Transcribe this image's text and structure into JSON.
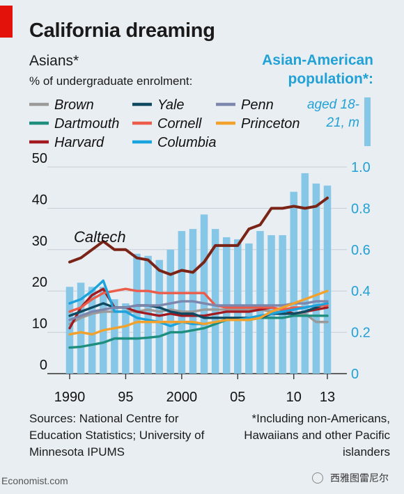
{
  "header": {
    "title": "California dreaming",
    "subtitle": "Asians*",
    "subtitle2": "% of undergraduate enrolment:",
    "right_title": "Asian-American population*:",
    "right_sub": "aged 18-21, m"
  },
  "footer": {
    "sources": "Sources: National Centre for Education Statistics; University of Minnesota IPUMS",
    "footnote": "*Including non-Americans, Hawaiians and other Pacific islanders",
    "brand": "Economist.com",
    "watermark": "西雅图雷尼尔"
  },
  "chart_data": {
    "type": "line",
    "x_range": [
      1990,
      2013
    ],
    "x_tick_labels": [
      "1990",
      "95",
      "2000",
      "05",
      "10",
      "13"
    ],
    "x_tick_values": [
      1990,
      1995,
      2000,
      2005,
      2010,
      2013
    ],
    "ylim_left": [
      0,
      50
    ],
    "y_ticks_left": [
      0,
      10,
      20,
      30,
      40,
      50
    ],
    "ylim_right": [
      0,
      1.0
    ],
    "y_ticks_right": [
      "0",
      "0.2",
      "0.4",
      "0.6",
      "0.8",
      "1.0"
    ],
    "y_ticks_right_values": [
      0,
      0.2,
      0.4,
      0.6,
      0.8,
      1.0
    ],
    "grid": true,
    "legend_position": "top",
    "bars": {
      "axis": "right",
      "color": "#86c6e6",
      "x": [
        1990,
        1991,
        1992,
        1993,
        1994,
        1995,
        1996,
        1997,
        1998,
        1999,
        2000,
        2001,
        2002,
        2003,
        2004,
        2005,
        2006,
        2007,
        2008,
        2009,
        2010,
        2011,
        2012,
        2013
      ],
      "values": [
        0.42,
        0.44,
        0.42,
        0.42,
        0.36,
        0.34,
        0.58,
        0.57,
        0.55,
        0.6,
        0.69,
        0.7,
        0.77,
        0.7,
        0.66,
        0.65,
        0.63,
        0.69,
        0.67,
        0.67,
        0.88,
        0.97,
        0.92,
        0.91
      ]
    },
    "series": [
      {
        "name": "Brown",
        "color": "#9a9a9a",
        "values": [
          12,
          13.5,
          14.5,
          15,
          15,
          15,
          15,
          15.5,
          15,
          15.5,
          15,
          15,
          15.5,
          15.5,
          15.5,
          15.5,
          15.5,
          15.5,
          15,
          15,
          14.5,
          14.5,
          12.5,
          12.5
        ]
      },
      {
        "name": "Dartmouth",
        "color": "#1e8f7e",
        "values": [
          6.3,
          6.5,
          7,
          7.5,
          8.5,
          8.5,
          8.5,
          8.7,
          9,
          10,
          10,
          10.5,
          11,
          12,
          13,
          13,
          13,
          13.5,
          13.5,
          13.5,
          14,
          14,
          14,
          14
        ]
      },
      {
        "name": "Harvard",
        "color": "#a11a1f",
        "values": [
          11,
          16,
          19,
          20.5,
          16,
          16,
          15,
          14.5,
          14,
          14.5,
          14,
          14,
          14,
          14.5,
          15,
          15,
          15,
          15.5,
          16,
          15.5,
          14.5,
          15,
          15.5,
          16
        ]
      },
      {
        "name": "Yale",
        "color": "#0f4a60",
        "values": [
          14,
          15,
          16,
          17,
          16,
          16,
          16.5,
          16.5,
          16,
          15,
          14.5,
          14.5,
          13.5,
          13.5,
          13.5,
          13.5,
          13.5,
          13.5,
          14.5,
          14.5,
          14.5,
          15,
          16,
          17
        ]
      },
      {
        "name": "Cornell",
        "color": "#ec5c4a",
        "values": [
          15,
          16,
          18,
          19.5,
          20,
          20.5,
          20,
          20,
          19.5,
          19.5,
          19.5,
          19.5,
          19.5,
          16.5,
          16,
          16,
          16,
          16,
          16,
          15.5,
          16,
          16,
          16.5,
          16.5
        ]
      },
      {
        "name": "Columbia",
        "color": "#1aa3dc",
        "values": [
          17,
          18,
          20,
          22.5,
          15,
          15,
          13.5,
          13,
          12.5,
          11.5,
          12.5,
          12,
          12,
          12.5,
          13,
          13,
          13.5,
          14,
          14.5,
          15,
          15.5,
          16,
          16.5,
          17
        ]
      },
      {
        "name": "Penn",
        "color": "#7d87ad",
        "values": [
          13,
          14,
          15,
          15.5,
          16,
          16,
          16.5,
          16.5,
          16.5,
          17,
          17.5,
          17.5,
          17,
          16.5,
          16.5,
          16.5,
          16.5,
          16.5,
          16.5,
          16.5,
          17,
          17,
          17.5,
          17.5
        ]
      },
      {
        "name": "Princeton",
        "color": "#f2a12c",
        "values": [
          9.5,
          10,
          9.5,
          10.5,
          11,
          11.5,
          12.5,
          12.5,
          12.5,
          12.5,
          12.5,
          12.5,
          12,
          12.5,
          13,
          13,
          13,
          13.5,
          15,
          16,
          17,
          18,
          19,
          20
        ]
      }
    ],
    "caltech": {
      "label": "Caltech",
      "color": "#7a2317",
      "values": [
        27,
        28,
        30,
        32,
        30,
        30,
        28,
        27.5,
        25,
        24,
        25,
        24.5,
        27,
        31,
        31,
        31,
        35,
        36,
        40,
        40,
        40.5,
        40,
        40.5,
        42.5
      ]
    }
  }
}
